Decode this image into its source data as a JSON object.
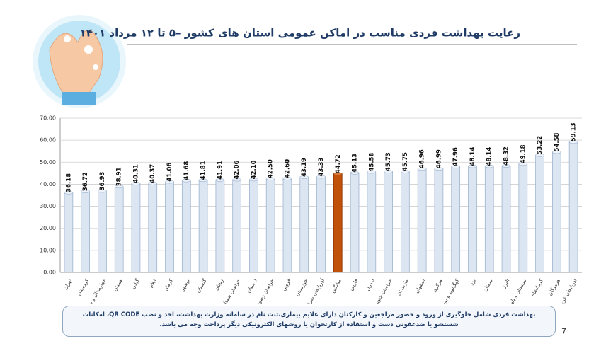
{
  "chart_data": {
    "type": "bar",
    "title": "رعایت بهداشت فردی مناسب در اماکن عمومی استان های کشور –۵ تا ۱۲ مرداد ۱۴۰۱",
    "categories": [
      "تهران",
      "کردستان",
      "چهارمحال و بختیاری",
      "همدان",
      "گیلان",
      "ایلام",
      "کرمان",
      "بوشهر",
      "گلستان",
      "زنجان",
      "خراسان شمالی",
      "لرستان",
      "خراسان رضوی",
      "قزوین",
      "خوزستان",
      "آذربایجان شرقی",
      "میانگین",
      "فارس",
      "اردبیل",
      "خراسان جنوبی",
      "مازندران",
      "اصفهان",
      "مرکزی",
      "کهگیلویه و بویراحمد",
      "یزد",
      "سمنان",
      "البرز",
      "سیستان و بلوچستان",
      "کرمانشاه",
      "هرمزگان",
      "آذربایجان غربی"
    ],
    "values": [
      36.18,
      36.72,
      36.93,
      38.91,
      40.31,
      40.37,
      41.06,
      41.68,
      41.81,
      41.91,
      42.06,
      42.1,
      42.5,
      42.6,
      43.19,
      43.33,
      44.72,
      45.13,
      45.58,
      45.73,
      45.75,
      46.96,
      46.99,
      47.96,
      48.14,
      48.14,
      48.32,
      49.18,
      53.22,
      54.58,
      59.13
    ],
    "value_labels": [
      "36.18",
      "36.72",
      "36.93",
      "38.91",
      "40.31",
      "40.37",
      "41.06",
      "41.68",
      "41.81",
      "41.91",
      "42.06",
      "42.10",
      "42.50",
      "42.60",
      "43.19",
      "43.33",
      "44.72",
      "45.13",
      "45.58",
      "45.73",
      "45.75",
      "46.96",
      "46.99",
      "47.96",
      "48.14",
      "48.14",
      "48.32",
      "49.18",
      "53.22",
      "54.58",
      "59.13"
    ],
    "colors": [
      "#dce6f2",
      "#dce6f2",
      "#dce6f2",
      "#dce6f2",
      "#dce6f2",
      "#dce6f2",
      "#dce6f2",
      "#dce6f2",
      "#dce6f2",
      "#dce6f2",
      "#dce6f2",
      "#dce6f2",
      "#dce6f2",
      "#dce6f2",
      "#dce6f2",
      "#dce6f2",
      "#c0500a",
      "#dce6f2",
      "#dce6f2",
      "#dce6f2",
      "#dce6f2",
      "#dce6f2",
      "#dce6f2",
      "#dce6f2",
      "#dce6f2",
      "#dce6f2",
      "#dce6f2",
      "#dce6f2",
      "#dce6f2",
      "#dce6f2",
      "#dce6f2"
    ],
    "ylim": [
      0,
      70
    ],
    "yticks": [
      {
        "value": 0,
        "label": "0.00"
      },
      {
        "value": 10,
        "label": "10.00"
      },
      {
        "value": 20,
        "label": "20.00"
      },
      {
        "value": 30,
        "label": "30.00"
      },
      {
        "value": 40,
        "label": "40.00"
      },
      {
        "value": 50,
        "label": "50.00"
      },
      {
        "value": 60,
        "label": "60.00"
      },
      {
        "value": 70,
        "label": "70.00"
      }
    ],
    "grid": true
  },
  "footnote": "بهداشت فردی شامل جلوگیری از ورود و حضور مراجعین و کارکنان دارای علایم بیماری،ثبت نام در سامانه وزارت بهداشت، اخذ و نصب QR CODE، امکانات شستشو یا ضدعفونی دست و استفاده از کارتخوان یا روشهای الکترونیکی دیگر پرداخت وجه می باشد.",
  "page_number": "7"
}
